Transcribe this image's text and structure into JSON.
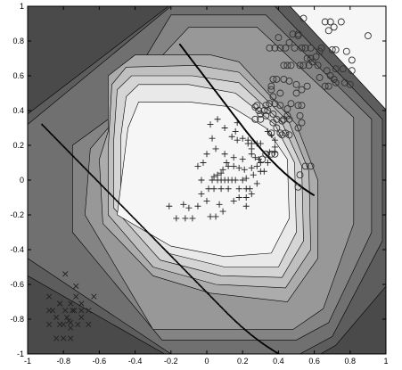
{
  "chart_data": {
    "type": "scatter",
    "title": "",
    "xlabel": "",
    "ylabel": "",
    "xlim": [
      -1,
      1
    ],
    "ylim": [
      -1,
      1
    ],
    "x_ticks": [
      "-1",
      "-0.8",
      "-0.6",
      "-0.4",
      "-0.2",
      "0",
      "0.2",
      "0.4",
      "0.6",
      "0.8",
      "1"
    ],
    "y_ticks": [
      "-1",
      "-0.8",
      "-0.6",
      "-0.4",
      "-0.2",
      "0",
      "0.2",
      "0.4",
      "0.6",
      "0.8",
      "1"
    ],
    "background": "filled contour map, grey levels from dark (outside) to light (centre region)",
    "contour_colors": [
      "#4a4a4a",
      "#5d5d5d",
      "#707070",
      "#848484",
      "#989898",
      "#acacac",
      "#c0c0c0",
      "#d5d5d5",
      "#e9e9e9",
      "#f6f6f6"
    ],
    "series": [
      {
        "marker": "circle",
        "points": [
          [
            0.7,
            0.75
          ],
          [
            0.72,
            0.75
          ],
          [
            0.9,
            0.83
          ],
          [
            0.35,
            0.76
          ],
          [
            0.38,
            0.76
          ],
          [
            0.41,
            0.76
          ],
          [
            0.44,
            0.76
          ],
          [
            0.49,
            0.76
          ],
          [
            0.51,
            0.84
          ],
          [
            0.51,
            0.83
          ],
          [
            0.53,
            0.76
          ],
          [
            0.55,
            0.76
          ],
          [
            0.58,
            0.76
          ],
          [
            0.64,
            0.76
          ],
          [
            0.66,
            0.91
          ],
          [
            0.69,
            0.91
          ],
          [
            0.75,
            0.91
          ],
          [
            0.54,
            0.93
          ],
          [
            0.43,
            0.66
          ],
          [
            0.45,
            0.66
          ],
          [
            0.47,
            0.66
          ],
          [
            0.52,
            0.66
          ],
          [
            0.54,
            0.66
          ],
          [
            0.57,
            0.66
          ],
          [
            0.62,
            0.66
          ],
          [
            0.76,
            0.64
          ],
          [
            0.81,
            0.69
          ],
          [
            0.63,
            0.59
          ],
          [
            0.66,
            0.54
          ],
          [
            0.68,
            0.54
          ],
          [
            0.72,
            0.56
          ],
          [
            0.77,
            0.56
          ],
          [
            0.8,
            0.55
          ],
          [
            0.37,
            0.58
          ],
          [
            0.39,
            0.58
          ],
          [
            0.43,
            0.58
          ],
          [
            0.46,
            0.57
          ],
          [
            0.5,
            0.55
          ],
          [
            0.5,
            0.5
          ],
          [
            0.53,
            0.52
          ],
          [
            0.56,
            0.54
          ],
          [
            0.36,
            0.54
          ],
          [
            0.41,
            0.5
          ],
          [
            0.37,
            0.48
          ],
          [
            0.47,
            0.44
          ],
          [
            0.45,
            0.41
          ],
          [
            0.41,
            0.43
          ],
          [
            0.35,
            0.44
          ],
          [
            0.32,
            0.4
          ],
          [
            0.3,
            0.38
          ],
          [
            0.3,
            0.35
          ],
          [
            0.33,
            0.37
          ],
          [
            0.37,
            0.38
          ],
          [
            0.39,
            0.35
          ],
          [
            0.43,
            0.35
          ],
          [
            0.46,
            0.35
          ],
          [
            0.51,
            0.43
          ],
          [
            0.53,
            0.43
          ],
          [
            0.42,
            0.26
          ],
          [
            0.46,
            0.26
          ],
          [
            0.42,
            0.34
          ],
          [
            0.39,
            0.3
          ],
          [
            0.36,
            0.27
          ],
          [
            0.28,
            0.43
          ],
          [
            0.29,
            0.4
          ],
          [
            0.51,
            0.3
          ],
          [
            0.53,
            0.33
          ],
          [
            0.27,
            0.35
          ],
          [
            0.52,
            0.37
          ],
          [
            0.45,
            0.37
          ],
          [
            0.56,
            0.7
          ],
          [
            0.58,
            0.7
          ],
          [
            0.72,
            0.64
          ],
          [
            0.78,
            0.74
          ],
          [
            0.36,
            0.52
          ],
          [
            0.37,
            0.33
          ],
          [
            0.31,
            0.12
          ],
          [
            0.27,
            0.42
          ],
          [
            0.33,
            0.15
          ],
          [
            0.36,
            0.15
          ],
          [
            0.38,
            0.15
          ],
          [
            0.41,
            0.27
          ],
          [
            0.55,
            0.08
          ],
          [
            0.58,
            0.08
          ],
          [
            0.44,
            0.27
          ],
          [
            0.52,
            0.03
          ],
          [
            0.33,
            0.43
          ],
          [
            0.34,
            0.4
          ],
          [
            0.38,
            0.44
          ],
          [
            0.51,
            -0.04
          ],
          [
            0.59,
            0.68
          ],
          [
            0.61,
            0.71
          ],
          [
            0.63,
            0.74
          ],
          [
            0.67,
            0.63
          ],
          [
            0.69,
            0.6
          ],
          [
            0.71,
            0.58
          ],
          [
            0.48,
            0.84
          ],
          [
            0.46,
            0.79
          ],
          [
            0.4,
            0.82
          ],
          [
            0.71,
            0.88
          ],
          [
            0.68,
            0.86
          ],
          [
            0.81,
            0.63
          ]
        ]
      },
      {
        "marker": "plus",
        "points": [
          [
            0.17,
            0.33
          ],
          [
            0.16,
            0.28
          ],
          [
            0.14,
            0.25
          ],
          [
            0.17,
            0.23
          ],
          [
            0.2,
            0.24
          ],
          [
            0.23,
            0.23
          ],
          [
            0.23,
            0.21
          ],
          [
            0.25,
            0.21
          ],
          [
            0.28,
            0.21
          ],
          [
            0.3,
            0.21
          ],
          [
            0.34,
            0.28
          ],
          [
            0.36,
            0.26
          ],
          [
            0.38,
            0.23
          ],
          [
            0.38,
            0.19
          ],
          [
            0.35,
            0.16
          ],
          [
            0.38,
            0.16
          ],
          [
            0.27,
            0.13
          ],
          [
            0.29,
            0.12
          ],
          [
            0.3,
            0.1
          ],
          [
            0.28,
            0.08
          ],
          [
            0.25,
            0.07
          ],
          [
            0.21,
            0.06
          ],
          [
            0.18,
            0.07
          ],
          [
            0.15,
            0.08
          ],
          [
            0.12,
            0.08
          ],
          [
            0.2,
            0.12
          ],
          [
            0.25,
            0.15
          ],
          [
            0.25,
            0.18
          ],
          [
            0.15,
            0.13
          ],
          [
            0.11,
            0.1
          ],
          [
            0.09,
            0.06
          ],
          [
            0.08,
            0.04
          ],
          [
            0.06,
            0.03
          ],
          [
            0.04,
            0.02
          ],
          [
            0.03,
            0.0
          ],
          [
            0.06,
            0.0
          ],
          [
            0.08,
            0.0
          ],
          [
            0.1,
            0.0
          ],
          [
            0.12,
            0.0
          ],
          [
            0.14,
            0.0
          ],
          [
            0.16,
            0.0
          ],
          [
            0.2,
            0.0
          ],
          [
            0.22,
            0.01
          ],
          [
            0.26,
            0.03
          ],
          [
            0.3,
            0.05
          ],
          [
            0.24,
            -0.05
          ],
          [
            0.22,
            -0.05
          ],
          [
            0.18,
            -0.05
          ],
          [
            0.12,
            -0.05
          ],
          [
            0.08,
            -0.05
          ],
          [
            0.04,
            -0.05
          ],
          [
            0.01,
            -0.05
          ],
          [
            -0.03,
            0.0
          ],
          [
            -0.05,
            0.08
          ],
          [
            -0.02,
            0.1
          ],
          [
            0.0,
            0.15
          ],
          [
            0.05,
            0.18
          ],
          [
            0.1,
            0.15
          ],
          [
            -0.21,
            -0.15
          ],
          [
            -0.12,
            -0.22
          ],
          [
            -0.08,
            -0.22
          ],
          [
            -0.05,
            -0.15
          ],
          [
            -0.03,
            -0.08
          ],
          [
            0.0,
            -0.12
          ],
          [
            0.02,
            -0.21
          ],
          [
            0.05,
            -0.21
          ],
          [
            0.07,
            -0.14
          ],
          [
            0.09,
            -0.18
          ],
          [
            0.15,
            -0.12
          ],
          [
            0.18,
            -0.1
          ],
          [
            0.22,
            -0.1
          ],
          [
            0.22,
            -0.15
          ],
          [
            0.25,
            -0.08
          ],
          [
            0.03,
            0.24
          ],
          [
            0.02,
            0.32
          ],
          [
            0.06,
            0.35
          ],
          [
            0.1,
            0.3
          ],
          [
            0.32,
            0.05
          ],
          [
            0.34,
            0.1
          ],
          [
            -0.17,
            -0.22
          ],
          [
            -0.1,
            -0.16
          ],
          [
            -0.13,
            -0.14
          ],
          [
            0.28,
            -0.02
          ]
        ]
      },
      {
        "marker": "x",
        "points": [
          [
            -0.79,
            -0.54
          ],
          [
            -0.73,
            -0.61
          ],
          [
            -0.88,
            -0.83
          ],
          [
            -0.8,
            -0.83
          ],
          [
            -0.78,
            -0.79
          ],
          [
            -0.82,
            -0.71
          ],
          [
            -0.7,
            -0.71
          ],
          [
            -0.75,
            -0.75
          ],
          [
            -0.7,
            -0.79
          ],
          [
            -0.76,
            -0.85
          ],
          [
            -0.73,
            -0.67
          ],
          [
            -0.66,
            -0.75
          ],
          [
            -0.63,
            -0.67
          ],
          [
            -0.66,
            -0.83
          ],
          [
            -0.84,
            -0.79
          ],
          [
            -0.86,
            -0.75
          ],
          [
            -0.79,
            -0.75
          ],
          [
            -0.82,
            -0.83
          ],
          [
            -0.76,
            -0.82
          ],
          [
            -0.72,
            -0.83
          ],
          [
            -0.84,
            -0.91
          ],
          [
            -0.8,
            -0.91
          ],
          [
            -0.76,
            -0.91
          ],
          [
            -0.82,
            -0.71
          ],
          [
            -0.88,
            -0.75
          ],
          [
            -0.88,
            -0.67
          ],
          [
            -0.76,
            -0.71
          ],
          [
            -0.74,
            -0.75
          ],
          [
            -0.7,
            -0.75
          ],
          [
            -0.77,
            -0.81
          ]
        ]
      }
    ]
  }
}
